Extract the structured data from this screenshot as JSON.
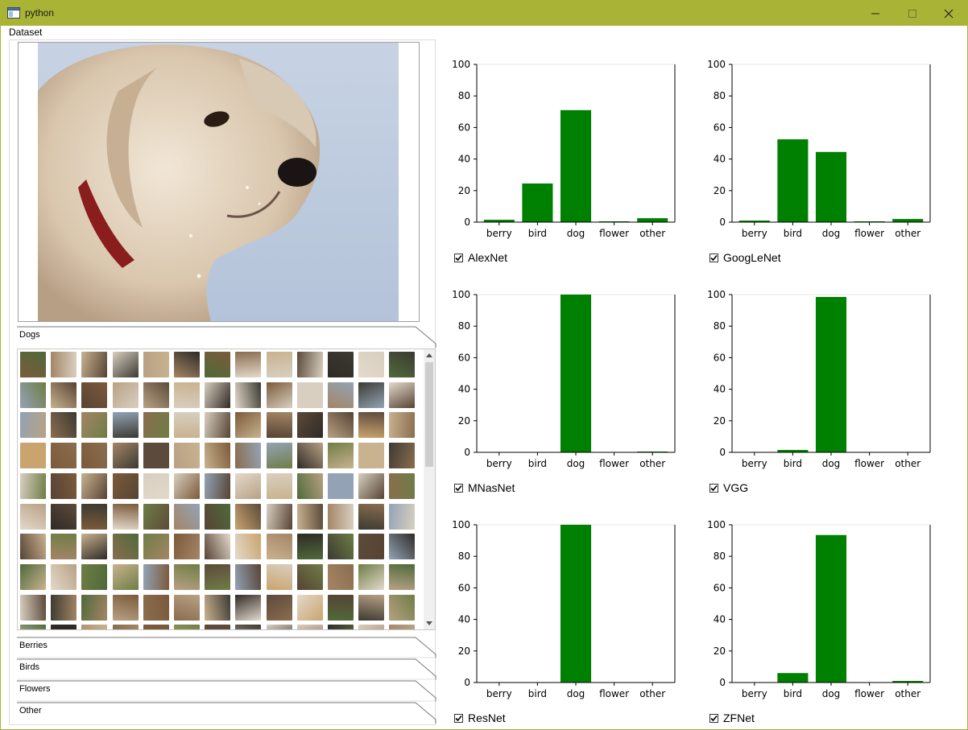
{
  "window": {
    "title": "python",
    "accent": "#a9b437"
  },
  "menu": {
    "items": [
      "Dataset"
    ]
  },
  "dataset": {
    "sections": [
      {
        "label": "Dogs",
        "expanded": true
      },
      {
        "label": "Berries",
        "expanded": false
      },
      {
        "label": "Birds",
        "expanded": false
      },
      {
        "label": "Flowers",
        "expanded": false
      },
      {
        "label": "Other",
        "expanded": false
      }
    ],
    "thumb_grid": {
      "columns": 13,
      "visible_rows": 10
    }
  },
  "chart_data": [
    {
      "type": "bar",
      "model": "AlexNet",
      "checked": true,
      "categories": [
        "berry",
        "bird",
        "dog",
        "flower",
        "other"
      ],
      "values": [
        1.5,
        24.5,
        71,
        0.5,
        2.5
      ],
      "ylim": [
        0,
        100
      ],
      "yticks": [
        0,
        20,
        40,
        60,
        80,
        100
      ],
      "color": "#008000"
    },
    {
      "type": "bar",
      "model": "GoogLeNet",
      "checked": true,
      "categories": [
        "berry",
        "bird",
        "dog",
        "flower",
        "other"
      ],
      "values": [
        1,
        52.5,
        44.5,
        0.5,
        2
      ],
      "ylim": [
        0,
        100
      ],
      "yticks": [
        0,
        20,
        40,
        60,
        80,
        100
      ],
      "color": "#008000"
    },
    {
      "type": "bar",
      "model": "MNasNet",
      "checked": true,
      "categories": [
        "berry",
        "bird",
        "dog",
        "flower",
        "other"
      ],
      "values": [
        0,
        0,
        100,
        0,
        0.5
      ],
      "ylim": [
        0,
        100
      ],
      "yticks": [
        0,
        20,
        40,
        60,
        80,
        100
      ],
      "color": "#008000"
    },
    {
      "type": "bar",
      "model": "VGG",
      "checked": true,
      "categories": [
        "berry",
        "bird",
        "dog",
        "flower",
        "other"
      ],
      "values": [
        0,
        1.5,
        98.5,
        0,
        0
      ],
      "ylim": [
        0,
        100
      ],
      "yticks": [
        0,
        20,
        40,
        60,
        80,
        100
      ],
      "color": "#008000"
    },
    {
      "type": "bar",
      "model": "ResNet",
      "checked": true,
      "categories": [
        "berry",
        "bird",
        "dog",
        "flower",
        "other"
      ],
      "values": [
        0,
        0,
        100,
        0,
        0
      ],
      "ylim": [
        0,
        100
      ],
      "yticks": [
        0,
        20,
        40,
        60,
        80,
        100
      ],
      "color": "#008000"
    },
    {
      "type": "bar",
      "model": "ZFNet",
      "checked": true,
      "categories": [
        "berry",
        "bird",
        "dog",
        "flower",
        "other"
      ],
      "values": [
        0,
        6,
        93.5,
        0,
        1
      ],
      "ylim": [
        0,
        100
      ],
      "yticks": [
        0,
        20,
        40,
        60,
        80,
        100
      ],
      "color": "#008000"
    }
  ]
}
